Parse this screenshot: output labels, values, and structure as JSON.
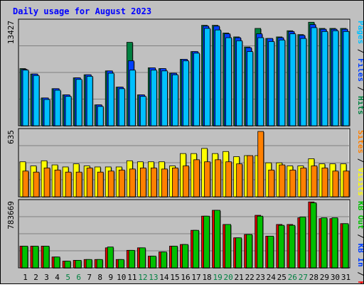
{
  "title": "Daily usage for August 2023",
  "colors": {
    "background": "#c0c0c0",
    "plot": "#c0c0c0",
    "grid": "#808080",
    "title": "#0000ff",
    "day_label": "#000000",
    "weekend_label": "#008040",
    "hits": "#008040",
    "files": "#0040ff",
    "pages": "#00c0ff",
    "visits": "#ffff00",
    "sites": "#ff8000",
    "kbin": "#0040ff",
    "kbout": "#00c000",
    "kbf": "#ff0000",
    "kbf_bar": "#e00000",
    "kbout_bar": "#00c000",
    "bar_edge": "#000000"
  },
  "chart_data": [
    {
      "type": "bar",
      "panel": "hits-files-pages",
      "ymax_label": "13427",
      "ylim": [
        0,
        13427
      ],
      "legend": [
        {
          "text": "Hits",
          "color": "#008040"
        },
        {
          "text": "Files",
          "color": "#0040ff"
        },
        {
          "text": "Pages",
          "color": "#00c0ff"
        }
      ],
      "categories": [
        "1",
        "2",
        "3",
        "4",
        "5",
        "6",
        "7",
        "8",
        "9",
        "10",
        "11",
        "12",
        "13",
        "14",
        "15",
        "16",
        "17",
        "18",
        "19",
        "20",
        "21",
        "22",
        "23",
        "24",
        "25",
        "26",
        "27",
        "28",
        "29",
        "30",
        "31"
      ],
      "series": [
        {
          "name": "Hits",
          "values": [
            7400,
            6700,
            3600,
            4800,
            4000,
            6200,
            6600,
            2700,
            7100,
            5000,
            10800,
            4000,
            7500,
            7400,
            6800,
            8600,
            9600,
            13000,
            13000,
            12000,
            11500,
            10200,
            12600,
            11300,
            11500,
            12300,
            11800,
            13400,
            12600,
            12600,
            12600
          ]
        },
        {
          "name": "Files",
          "values": [
            7300,
            6700,
            3600,
            4800,
            4000,
            6200,
            6600,
            2700,
            7100,
            5000,
            8400,
            4000,
            7500,
            7400,
            6800,
            8600,
            9600,
            12900,
            12900,
            11900,
            11400,
            10100,
            11900,
            11300,
            11400,
            12200,
            11700,
            13100,
            12500,
            12500,
            12500
          ]
        },
        {
          "name": "Pages",
          "values": [
            7200,
            6500,
            3400,
            4600,
            3800,
            6000,
            6400,
            2500,
            6800,
            4800,
            7200,
            3800,
            7200,
            7100,
            6600,
            8400,
            9400,
            12600,
            12400,
            11400,
            11000,
            9600,
            11400,
            10900,
            11100,
            11900,
            11300,
            12700,
            12200,
            12300,
            12200
          ]
        }
      ]
    },
    {
      "type": "bar",
      "panel": "visits-sites",
      "ymax_label": "635",
      "ylim": [
        0,
        635
      ],
      "legend": [
        {
          "text": "Visits",
          "color": "#ffff00"
        },
        {
          "text": "Sites",
          "color": "#ff8000"
        }
      ],
      "categories": [
        "1",
        "2",
        "3",
        "4",
        "5",
        "6",
        "7",
        "8",
        "9",
        "10",
        "11",
        "12",
        "13",
        "14",
        "15",
        "16",
        "17",
        "18",
        "19",
        "20",
        "21",
        "22",
        "23",
        "24",
        "25",
        "26",
        "27",
        "28",
        "29",
        "30",
        "31"
      ],
      "series": [
        {
          "name": "Visits",
          "values": [
            340,
            300,
            350,
            310,
            290,
            320,
            300,
            290,
            290,
            290,
            350,
            340,
            340,
            340,
            300,
            420,
            420,
            470,
            420,
            440,
            390,
            400,
            400,
            330,
            330,
            300,
            300,
            370,
            320,
            320,
            320
          ]
        },
        {
          "name": "Sites",
          "values": [
            250,
            240,
            280,
            260,
            240,
            240,
            280,
            240,
            250,
            260,
            270,
            280,
            280,
            270,
            280,
            300,
            360,
            340,
            360,
            340,
            320,
            400,
            635,
            260,
            310,
            260,
            280,
            300,
            280,
            250,
            250
          ]
        }
      ]
    },
    {
      "type": "bar",
      "panel": "kbf-kbin-kbout",
      "ymax_label": "783669",
      "ylim": [
        0,
        783669
      ],
      "legend": [
        {
          "text": "KB F",
          "color": "#ff0000"
        },
        {
          "text": "KB In",
          "color": "#0040ff"
        },
        {
          "text": "KB Out",
          "color": "#00c000"
        }
      ],
      "categories": [
        "1",
        "2",
        "3",
        "4",
        "5",
        "6",
        "7",
        "8",
        "9",
        "10",
        "11",
        "12",
        "13",
        "14",
        "15",
        "16",
        "17",
        "18",
        "19",
        "20",
        "21",
        "22",
        "23",
        "24",
        "25",
        "26",
        "27",
        "28",
        "29",
        "30",
        "31"
      ],
      "series": [
        {
          "name": "KB F",
          "values": [
            260000,
            260000,
            260000,
            130000,
            80000,
            90000,
            100000,
            100000,
            240000,
            100000,
            210000,
            240000,
            140000,
            190000,
            260000,
            280000,
            450000,
            620000,
            690000,
            520000,
            360000,
            400000,
            630000,
            380000,
            520000,
            520000,
            600000,
            790000,
            590000,
            590000,
            530000
          ]
        },
        {
          "name": "KB Out",
          "values": [
            260000,
            260000,
            260000,
            130000,
            80000,
            90000,
            100000,
            100000,
            250000,
            100000,
            210000,
            240000,
            140000,
            190000,
            260000,
            280000,
            450000,
            620000,
            690000,
            520000,
            360000,
            400000,
            620000,
            380000,
            510000,
            510000,
            610000,
            780000,
            600000,
            600000,
            530000
          ]
        }
      ]
    }
  ],
  "weekend_days": [
    "5",
    "6",
    "12",
    "13",
    "19",
    "20",
    "26",
    "27"
  ]
}
